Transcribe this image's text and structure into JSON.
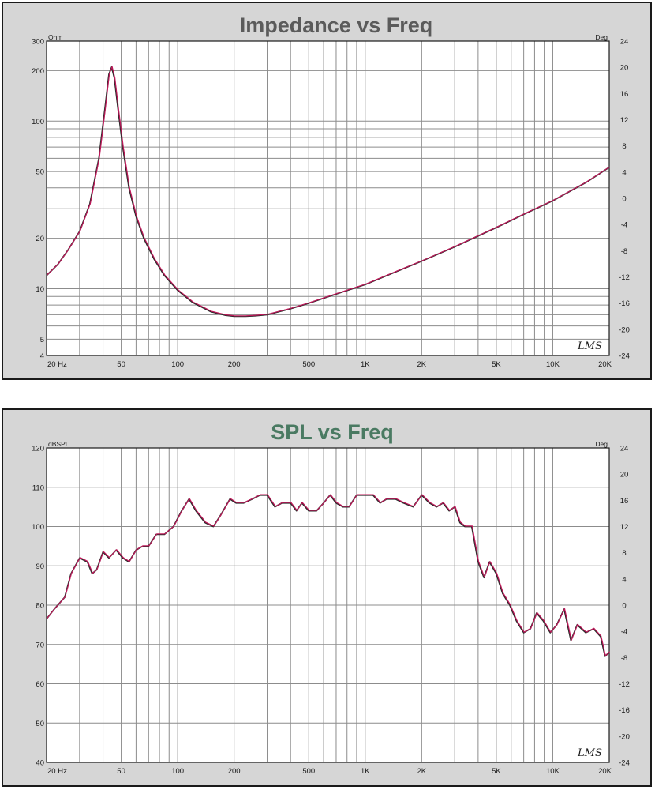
{
  "chart_data": [
    {
      "type": "line",
      "title": "Impedance vs Freq",
      "x_scale": "log",
      "y_scale": "log",
      "xlim": [
        20,
        20000
      ],
      "ylim": [
        4,
        300
      ],
      "y2lim": [
        -24,
        24
      ],
      "left_unit": "Ohm",
      "right_unit": "Deg",
      "x_ticks": [
        {
          "v": 20,
          "label": "20 Hz"
        },
        {
          "v": 50,
          "label": "50"
        },
        {
          "v": 100,
          "label": "100"
        },
        {
          "v": 200,
          "label": "200"
        },
        {
          "v": 500,
          "label": "500"
        },
        {
          "v": 1000,
          "label": "1K"
        },
        {
          "v": 2000,
          "label": "2K"
        },
        {
          "v": 5000,
          "label": "5K"
        },
        {
          "v": 10000,
          "label": "10K"
        },
        {
          "v": 20000,
          "label": "20K"
        }
      ],
      "y_ticks": [
        {
          "v": 4,
          "label": "4"
        },
        {
          "v": 5,
          "label": "5"
        },
        {
          "v": 10,
          "label": "10"
        },
        {
          "v": 20,
          "label": "20"
        },
        {
          "v": 50,
          "label": "50"
        },
        {
          "v": 100,
          "label": "100"
        },
        {
          "v": 200,
          "label": "200"
        },
        {
          "v": 300,
          "label": "300"
        }
      ],
      "y2_ticks": [
        24,
        20,
        16,
        12,
        8,
        4,
        0,
        -4,
        -8,
        -12,
        -16,
        -20,
        -24
      ],
      "grid": true,
      "logo": "LMS",
      "series": [
        {
          "color": "#c0185a",
          "x": [
            20,
            23,
            26,
            30,
            34,
            38,
            41,
            43,
            44.5,
            46,
            48,
            51,
            55,
            60,
            66,
            75,
            85,
            100,
            120,
            150,
            180,
            200,
            230,
            260,
            300,
            400,
            500,
            700,
            1000,
            1500,
            2000,
            3000,
            5000,
            7000,
            10000,
            15000,
            20000
          ],
          "y": [
            12,
            14,
            17,
            22,
            32,
            60,
            120,
            190,
            210,
            180,
            120,
            70,
            40,
            27,
            20,
            15,
            12,
            9.8,
            8.3,
            7.3,
            6.95,
            6.85,
            6.85,
            6.9,
            7.0,
            7.6,
            8.2,
            9.3,
            10.6,
            12.8,
            14.6,
            17.8,
            23.2,
            27.8,
            33.5,
            43,
            53
          ]
        }
      ]
    },
    {
      "type": "line",
      "title": "SPL vs Freq",
      "x_scale": "log",
      "y_scale": "linear",
      "xlim": [
        20,
        20000
      ],
      "ylim": [
        40,
        120
      ],
      "y2lim": [
        -24,
        24
      ],
      "left_unit": "dBSPL",
      "right_unit": "Deg",
      "x_ticks": [
        {
          "v": 20,
          "label": "20 Hz"
        },
        {
          "v": 50,
          "label": "50"
        },
        {
          "v": 100,
          "label": "100"
        },
        {
          "v": 200,
          "label": "200"
        },
        {
          "v": 500,
          "label": "500"
        },
        {
          "v": 1000,
          "label": "1K"
        },
        {
          "v": 2000,
          "label": "2K"
        },
        {
          "v": 5000,
          "label": "5K"
        },
        {
          "v": 10000,
          "label": "10K"
        },
        {
          "v": 20000,
          "label": "20K"
        }
      ],
      "y_ticks": [
        {
          "v": 40,
          "label": "40"
        },
        {
          "v": 50,
          "label": "50"
        },
        {
          "v": 60,
          "label": "60"
        },
        {
          "v": 70,
          "label": "70"
        },
        {
          "v": 80,
          "label": "80"
        },
        {
          "v": 90,
          "label": "90"
        },
        {
          "v": 100,
          "label": "100"
        },
        {
          "v": 110,
          "label": "110"
        },
        {
          "v": 120,
          "label": "120"
        }
      ],
      "y2_ticks": [
        24,
        20,
        16,
        12,
        8,
        4,
        0,
        -4,
        -8,
        -12,
        -16,
        -20,
        -24
      ],
      "grid": true,
      "logo": "LMS",
      "series": [
        {
          "color": "#c0185a",
          "x": [
            20,
            22,
            25,
            27,
            30,
            33,
            35,
            37,
            40,
            43,
            47,
            51,
            55,
            60,
            65,
            70,
            77,
            85,
            95,
            105,
            115,
            125,
            140,
            155,
            170,
            190,
            205,
            225,
            250,
            275,
            300,
            330,
            360,
            400,
            430,
            460,
            500,
            550,
            600,
            650,
            700,
            760,
            820,
            900,
            1000,
            1100,
            1200,
            1300,
            1450,
            1600,
            1800,
            2000,
            2200,
            2400,
            2600,
            2800,
            3000,
            3200,
            3400,
            3700,
            4000,
            4300,
            4600,
            5000,
            5400,
            5900,
            6400,
            7000,
            7600,
            8200,
            8900,
            9700,
            10500,
            11500,
            12500,
            13500,
            15000,
            16500,
            18000,
            19000,
            20000
          ],
          "y": [
            76.5,
            79,
            82,
            88,
            92,
            91,
            88,
            89,
            93.5,
            92,
            94,
            92,
            91,
            94,
            95,
            95,
            98,
            98,
            100,
            104,
            107,
            104,
            101,
            100,
            103,
            107,
            106,
            106,
            107,
            108,
            108,
            105,
            106,
            106,
            104,
            106,
            104,
            104,
            106,
            108,
            106,
            105,
            105,
            108,
            108,
            108,
            106,
            107,
            107,
            106,
            105,
            108,
            106,
            105,
            106,
            104,
            105,
            101,
            100,
            100,
            91,
            87,
            91,
            88,
            83,
            80,
            76,
            73,
            74,
            78,
            76,
            73,
            75,
            79,
            71,
            75,
            73,
            74,
            72,
            67,
            68
          ]
        }
      ]
    }
  ]
}
